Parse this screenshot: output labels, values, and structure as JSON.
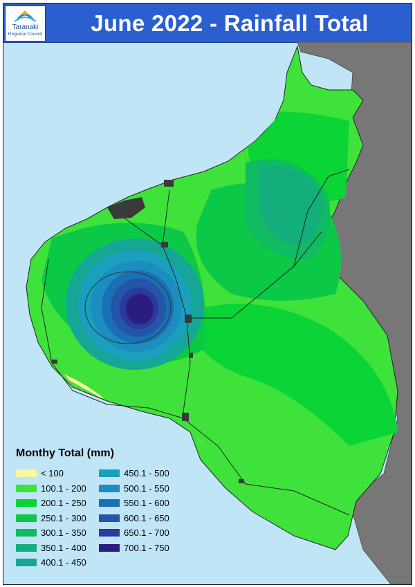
{
  "header": {
    "title": "June 2022 - Rainfall Total",
    "org_name_line1": "Taranaki",
    "org_name_line2": "Regional Council"
  },
  "colors": {
    "header": "#2b5fd0",
    "sea": "#bfe5f7",
    "neighbour_land": "#777777",
    "urban": "#3a3a3a"
  },
  "legend": {
    "title": "Monthy Total (mm)",
    "items": [
      {
        "label": "< 100",
        "color": "#f7f7a6"
      },
      {
        "label": "100.1 - 200",
        "color": "#3fe23a"
      },
      {
        "label": "200.1 - 250",
        "color": "#0ad436"
      },
      {
        "label": "250.1 - 300",
        "color": "#0cc847"
      },
      {
        "label": "300.1 - 350",
        "color": "#0fba62"
      },
      {
        "label": "350.1 - 400",
        "color": "#13ae7c"
      },
      {
        "label": "400.1 - 450",
        "color": "#16a696"
      },
      {
        "label": "450.1 - 500",
        "color": "#1aa0bd"
      },
      {
        "label": "500.1 - 550",
        "color": "#1c8dbf"
      },
      {
        "label": "550.1 - 600",
        "color": "#1b6fb4"
      },
      {
        "label": "600.1 - 650",
        "color": "#2355a8"
      },
      {
        "label": "650.1 - 700",
        "color": "#2a3a9d"
      },
      {
        "label": "700.1 - 750",
        "color": "#2b1d7f"
      }
    ]
  }
}
